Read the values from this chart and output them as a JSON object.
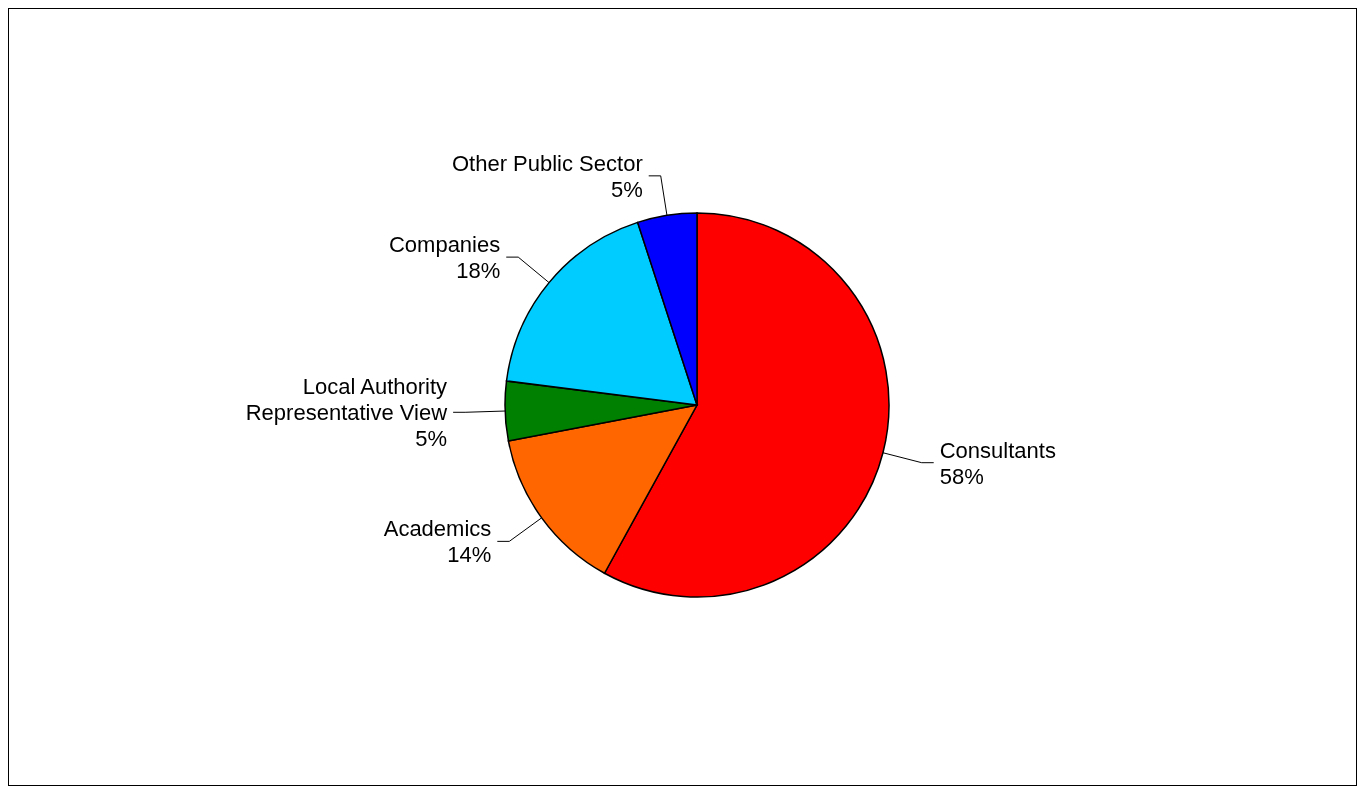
{
  "chart_data": {
    "type": "pie",
    "categories": [
      "Consultants",
      "Academics",
      "Local Authority Representative View",
      "Companies",
      "Other Public Sector"
    ],
    "values": [
      58,
      14,
      5,
      18,
      5
    ],
    "colors": [
      "#ff0000",
      "#ff6600",
      "#008000",
      "#00ccff",
      "#0000ff"
    ],
    "value_labels": [
      "58%",
      "14%",
      "5%",
      "18%",
      "5%"
    ]
  }
}
